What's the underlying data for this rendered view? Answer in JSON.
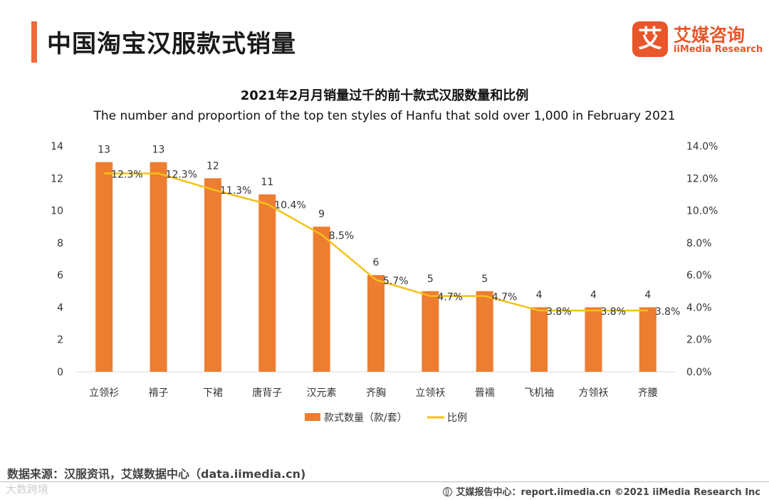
{
  "header": {
    "title": "中国淘宝汉服款式销量",
    "logo_mark": "艾",
    "logo_cn": "艾媒咨询",
    "logo_en": "iiMedia Research"
  },
  "colors": {
    "accent": "#ee6b3b",
    "bar": "#ed7d31",
    "line": "#f5c116"
  },
  "chart_data": {
    "type": "bar",
    "title": "2021年2月月销量过千的前十款式汉服数量和比例",
    "subtitle": "The number and proportion of the top ten styles of Hanfu that sold over 1,000 in February 2021",
    "categories": [
      "立领衫",
      "褙子",
      "下裙",
      "唐背子",
      "汉元素",
      "齐胸",
      "立领袄",
      "晋襦",
      "飞机袖",
      "方领袄",
      "齐腰"
    ],
    "series": [
      {
        "name": "款式数量（款/套）",
        "type": "bar",
        "axis": "left",
        "values": [
          13,
          13,
          12,
          11,
          9,
          6,
          5,
          5,
          4,
          4,
          4
        ],
        "labels": [
          "13",
          "13",
          "12",
          "11",
          "9",
          "6",
          "5",
          "5",
          "4",
          "4",
          "4"
        ]
      },
      {
        "name": "比例",
        "type": "line",
        "axis": "right",
        "values": [
          12.3,
          12.3,
          11.3,
          10.4,
          8.5,
          5.7,
          4.7,
          4.7,
          3.8,
          3.8,
          3.8
        ],
        "labels": [
          "12.3%",
          "12.3%",
          "11.3%",
          "10.4%",
          "8.5%",
          "5.7%",
          "4.7%",
          "4.7%",
          "3.8%",
          "3.8%",
          "3.8%"
        ]
      }
    ],
    "y_left": {
      "min": 0,
      "max": 14,
      "ticks": [
        "0",
        "2",
        "4",
        "6",
        "8",
        "10",
        "12",
        "14"
      ]
    },
    "y_right": {
      "min": 0,
      "max": 14,
      "ticks": [
        "0.0%",
        "2.0%",
        "4.0%",
        "6.0%",
        "8.0%",
        "10.0%",
        "12.0%",
        "14.0%"
      ]
    },
    "legend": {
      "position": "bottom",
      "items": [
        "款式数量（款/套）",
        "比例"
      ]
    },
    "grid": false
  },
  "footer": {
    "source": "数据来源：汉服资讯，艾媒数据中心（data.iimedia.cn)",
    "watermark": "大数跨境",
    "report": "艾媒报告中心：report.iimedia.cn   ©2021  iiMedia Research  Inc"
  }
}
